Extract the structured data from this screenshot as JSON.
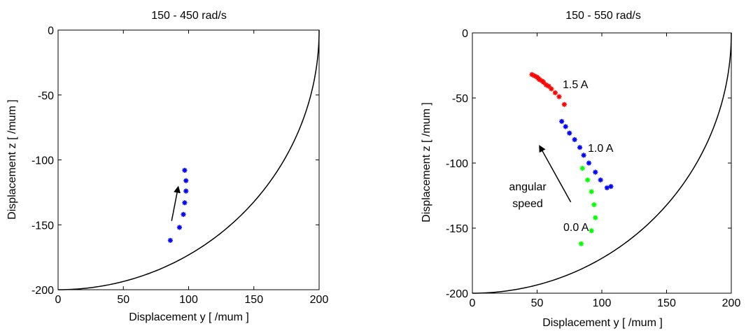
{
  "chart_data": [
    {
      "type": "scatter",
      "title": "150 - 450 rad/s",
      "xlabel": "Displacement y   [ /mum ]",
      "ylabel": "Displacement z    [ /mum ]",
      "xlim": [
        0,
        200
      ],
      "ylim": [
        -200,
        0
      ],
      "xticks": [
        0,
        50,
        100,
        150,
        200
      ],
      "yticks": [
        0,
        -50,
        -100,
        -150,
        -200
      ],
      "grid": false,
      "boundary_curve": {
        "type": "circle-arc",
        "center": [
          0,
          0
        ],
        "radius": 200,
        "color": "#000000"
      },
      "series": [
        {
          "color": "#0000ff",
          "marker": "*",
          "points": [
            [
              86,
              -162
            ],
            [
              93,
              -152
            ],
            [
              96,
              -142
            ],
            [
              97,
              -133
            ],
            [
              98,
              -124
            ],
            [
              98,
              -116
            ],
            [
              97,
              -108
            ]
          ]
        }
      ],
      "annotations": [
        {
          "type": "arrow",
          "from": [
            87,
            -147
          ],
          "to": [
            92,
            -121
          ],
          "text": ""
        }
      ]
    },
    {
      "type": "scatter",
      "title": "150 - 550 rad/s",
      "xlabel": "Displacement y   [ /mum ]",
      "ylabel": "Displacement z    [ /mum ]",
      "xlim": [
        0,
        200
      ],
      "ylim": [
        -200,
        0
      ],
      "xticks": [
        0,
        50,
        100,
        150,
        200
      ],
      "yticks": [
        0,
        -50,
        -100,
        -150,
        -200
      ],
      "grid": false,
      "boundary_curve": {
        "type": "circle-arc",
        "center": [
          0,
          0
        ],
        "radius": 200,
        "color": "#000000"
      },
      "series": [
        {
          "color": "#ff0000",
          "marker": "*",
          "label": "1.5 A",
          "points": [
            [
              46,
              -32
            ],
            [
              48,
              -33
            ],
            [
              50,
              -34
            ],
            [
              51,
              -35
            ],
            [
              52,
              -36
            ],
            [
              54,
              -37
            ],
            [
              55,
              -38
            ],
            [
              57,
              -40
            ],
            [
              59,
              -41
            ],
            [
              61,
              -43
            ],
            [
              64,
              -46
            ],
            [
              67,
              -49
            ],
            [
              71,
              -55
            ]
          ]
        },
        {
          "color": "#0000ff",
          "marker": "*",
          "label": "1.0 A",
          "points": [
            [
              69,
              -68
            ],
            [
              72,
              -72
            ],
            [
              75,
              -77
            ],
            [
              79,
              -82
            ],
            [
              83,
              -88
            ],
            [
              86,
              -94
            ],
            [
              90,
              -100
            ],
            [
              95,
              -107
            ],
            [
              99,
              -113
            ],
            [
              104,
              -119
            ],
            [
              107,
              -118
            ]
          ]
        },
        {
          "color": "#00ff00",
          "marker": "*",
          "label": "0.0 A",
          "points": [
            [
              84,
              -162
            ],
            [
              92,
              -152
            ],
            [
              95,
              -142
            ],
            [
              94,
              -132
            ],
            [
              92,
              -122
            ],
            [
              89,
              -113
            ],
            [
              85,
              -104
            ]
          ]
        }
      ],
      "annotations": [
        {
          "type": "text",
          "text": "1.5 A"
        },
        {
          "type": "text",
          "text": "1.0 A"
        },
        {
          "type": "text",
          "text": "0.0 A"
        },
        {
          "type": "text",
          "text": "angular"
        },
        {
          "type": "text",
          "text": "speed"
        },
        {
          "type": "arrow",
          "from": [
            76,
            -130
          ],
          "to": [
            52,
            -87
          ],
          "text": ""
        }
      ]
    }
  ]
}
